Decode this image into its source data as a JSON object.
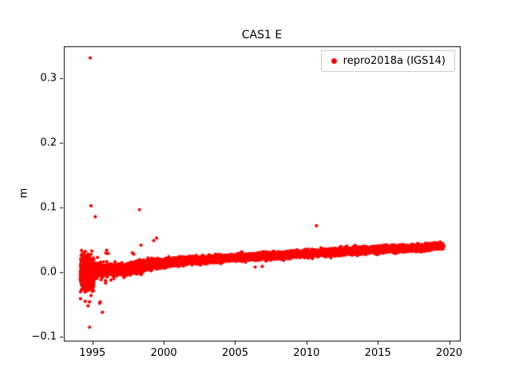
{
  "figure": {
    "background": "#ffffff"
  },
  "chart_data": {
    "type": "scatter",
    "title": "CAS1 E",
    "xlabel": "",
    "ylabel": "m",
    "xlim": [
      1993.0,
      2020.75
    ],
    "ylim": [
      -0.106,
      0.35
    ],
    "grid": false,
    "xticks": {
      "values": [
        1995,
        2000,
        2005,
        2010,
        2015,
        2020
      ],
      "labels": [
        "1995",
        "2000",
        "2005",
        "2010",
        "2015",
        "2020"
      ]
    },
    "yticks": {
      "values": [
        -0.1,
        0.0,
        0.1,
        0.2,
        0.3
      ],
      "labels": [
        "−0.1",
        "0.0",
        "0.1",
        "0.2",
        "0.3"
      ]
    },
    "legend": {
      "position": "upper-right",
      "border_color": "#cccccc",
      "background": "#ffffff"
    },
    "series": [
      {
        "name": "repro2018a (IGS14)",
        "color": "#ff0000",
        "marker": "dot",
        "seed": 42,
        "x_start": 1994.15,
        "x_end": 2019.6,
        "n_points": 9000,
        "band": [
          [
            1994.15,
            -0.001,
            0.009
          ],
          [
            1994.9,
            0.001,
            0.006
          ],
          [
            1995.8,
            0.003,
            0.0045
          ],
          [
            1997.0,
            0.004,
            0.004
          ],
          [
            1998.0,
            0.007,
            0.0045
          ],
          [
            1998.7,
            0.01,
            0.004
          ],
          [
            1999.6,
            0.013,
            0.0032
          ],
          [
            2000.5,
            0.016,
            0.0028
          ],
          [
            2002.0,
            0.018,
            0.0026
          ],
          [
            2004.0,
            0.021,
            0.0025
          ],
          [
            2006.0,
            0.024,
            0.0025
          ],
          [
            2008.0,
            0.026,
            0.0025
          ],
          [
            2010.0,
            0.029,
            0.0025
          ],
          [
            2012.0,
            0.031,
            0.0025
          ],
          [
            2014.0,
            0.034,
            0.0024
          ],
          [
            2016.0,
            0.036,
            0.0024
          ],
          [
            2018.0,
            0.038,
            0.0024
          ],
          [
            2019.6,
            0.041,
            0.0024
          ]
        ],
        "early_cluster": {
          "x0": 1994.2,
          "x1": 1995.1,
          "mean": -0.002,
          "std": 0.012,
          "n": 700
        },
        "tail": {
          "before": 1997.0,
          "p": 0.04,
          "scale": 2.2
        },
        "outliers": [
          [
            1994.85,
            0.332
          ],
          [
            1994.9,
            0.103
          ],
          [
            1995.2,
            0.086
          ],
          [
            1994.8,
            -0.085
          ],
          [
            1995.5,
            -0.048
          ],
          [
            1995.55,
            -0.046
          ],
          [
            1995.7,
            -0.062
          ],
          [
            1994.4,
            0.03
          ],
          [
            1994.45,
            0.026
          ],
          [
            1994.5,
            -0.045
          ],
          [
            1994.7,
            -0.052
          ],
          [
            1996.0,
            0.034
          ],
          [
            1996.1,
            0.029
          ],
          [
            1996.3,
            -0.012
          ],
          [
            1997.2,
            -0.008
          ],
          [
            1997.8,
            0.03
          ],
          [
            1997.9,
            0.028
          ],
          [
            1998.3,
            0.097
          ],
          [
            1998.4,
            0.042
          ],
          [
            1999.3,
            0.049
          ],
          [
            1999.5,
            0.053
          ],
          [
            2006.4,
            0.008
          ],
          [
            2006.9,
            0.009
          ],
          [
            2010.7,
            0.072
          ]
        ]
      }
    ]
  }
}
